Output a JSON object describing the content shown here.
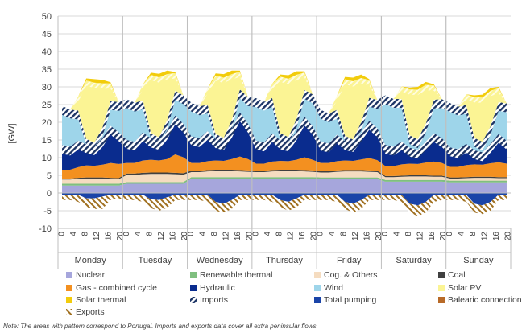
{
  "chart_data": {
    "type": "area",
    "ylabel": "[GW]",
    "ylim": [
      -10,
      50
    ],
    "yticks": [
      -10,
      -5,
      0,
      5,
      10,
      15,
      20,
      25,
      30,
      35,
      40,
      45,
      50
    ],
    "hour_ticks": [
      "0",
      "4",
      "8",
      "12",
      "16",
      "20"
    ],
    "days": [
      "Monday",
      "Tuesday",
      "Wednesday",
      "Thursday",
      "Friday",
      "Saturday",
      "Sunday"
    ],
    "legend": [
      {
        "key": "nuclear",
        "label": "Nuclear"
      },
      {
        "key": "renewable_thermal",
        "label": "Renewable thermal"
      },
      {
        "key": "cog_others",
        "label": "Cog. & Others"
      },
      {
        "key": "coal",
        "label": "Coal"
      },
      {
        "key": "gas_cc",
        "label": "Gas - combined cycle"
      },
      {
        "key": "hydraulic",
        "label": "Hydraulic"
      },
      {
        "key": "wind",
        "label": "Wind"
      },
      {
        "key": "solar_pv",
        "label": "Solar PV"
      },
      {
        "key": "solar_thermal",
        "label": "Solar thermal"
      },
      {
        "key": "imports",
        "label": "Imports"
      },
      {
        "key": "total_pumping",
        "label": "Total pumping"
      },
      {
        "key": "balearic",
        "label": "Balearic connection"
      },
      {
        "key": "exports",
        "label": "Exports"
      }
    ],
    "stack_order": [
      "nuclear",
      "renewable_thermal",
      "cog_others",
      "coal",
      "gas_cc",
      "hydraulic",
      "wind",
      "solar_pv",
      "solar_thermal"
    ],
    "colors": {
      "nuclear": "#a6a6dc",
      "renewable_thermal": "#7fbf7f",
      "cog_others": "#f5dcc0",
      "coal": "#404040",
      "gas_cc": "#f39020",
      "hydraulic": "#0a2c8e",
      "wind": "#9ed5ea",
      "solar_pv": "#fbf494",
      "solar_thermal": "#f2cc0c",
      "imports": "#20386e",
      "total_pumping": "#1a44a8",
      "balearic": "#b86a28",
      "exports": "#a07020"
    },
    "series": [
      {
        "key": "nuclear",
        "values": [
          2.1,
          2.1,
          2.1,
          2.1,
          2.1,
          2.1,
          2.1,
          2.1,
          2.6,
          2.6,
          2.6,
          2.6,
          2.6,
          2.6,
          2.6,
          2.6,
          4.0,
          4.0,
          4.0,
          4.0,
          4.0,
          4.0,
          4.0,
          4.0,
          4.0,
          4.0,
          4.0,
          4.0,
          4.0,
          4.0,
          4.0,
          4.0,
          3.9,
          3.9,
          3.9,
          3.9,
          3.9,
          3.9,
          3.9,
          3.9,
          3.2,
          3.2,
          3.2,
          3.2,
          3.2,
          3.2,
          3.2,
          3.2,
          3.0,
          3.0,
          3.0,
          3.0,
          3.0,
          3.0,
          3.0,
          3.0
        ]
      },
      {
        "key": "renewable_thermal",
        "values": [
          0.5,
          0.5,
          0.5,
          0.5,
          0.5,
          0.5,
          0.5,
          0.5,
          0.5,
          0.5,
          0.5,
          0.5,
          0.5,
          0.5,
          0.5,
          0.5,
          0.5,
          0.5,
          0.5,
          0.5,
          0.5,
          0.5,
          0.5,
          0.5,
          0.5,
          0.5,
          0.5,
          0.5,
          0.5,
          0.5,
          0.5,
          0.5,
          0.5,
          0.5,
          0.5,
          0.5,
          0.5,
          0.5,
          0.5,
          0.5,
          0.5,
          0.5,
          0.5,
          0.5,
          0.5,
          0.5,
          0.5,
          0.5,
          0.5,
          0.5,
          0.5,
          0.5,
          0.5,
          0.5,
          0.5,
          0.5
        ]
      },
      {
        "key": "cog_others",
        "values": [
          1.2,
          1.2,
          1.4,
          1.5,
          1.5,
          1.5,
          1.4,
          1.3,
          2.0,
          2.0,
          2.2,
          2.3,
          2.3,
          2.3,
          2.2,
          2.1,
          1.4,
          1.4,
          1.6,
          1.7,
          1.7,
          1.7,
          1.6,
          1.5,
          1.4,
          1.4,
          1.6,
          1.7,
          1.7,
          1.7,
          1.6,
          1.5,
          1.4,
          1.4,
          1.6,
          1.7,
          1.7,
          1.7,
          1.6,
          1.5,
          0.8,
          0.8,
          0.9,
          1.0,
          1.0,
          1.0,
          0.9,
          0.9,
          0.6,
          0.6,
          0.7,
          0.8,
          0.8,
          0.8,
          0.7,
          0.7
        ]
      },
      {
        "key": "coal",
        "values": [
          0.3,
          0.3,
          0.3,
          0.3,
          0.3,
          0.3,
          0.3,
          0.3,
          0.4,
          0.4,
          0.4,
          0.4,
          0.4,
          0.4,
          0.4,
          0.4,
          0.4,
          0.4,
          0.4,
          0.4,
          0.4,
          0.4,
          0.4,
          0.4,
          0.4,
          0.4,
          0.4,
          0.4,
          0.4,
          0.4,
          0.4,
          0.4,
          0.4,
          0.4,
          0.4,
          0.4,
          0.4,
          0.4,
          0.4,
          0.4,
          0.3,
          0.3,
          0.3,
          0.3,
          0.3,
          0.3,
          0.3,
          0.3,
          0.3,
          0.3,
          0.3,
          0.3,
          0.3,
          0.3,
          0.3,
          0.3
        ]
      },
      {
        "key": "gas_cc",
        "values": [
          2.5,
          2.5,
          3.0,
          3.4,
          3.3,
          3.6,
          4.2,
          4.0,
          3.0,
          3.0,
          3.5,
          3.6,
          3.4,
          3.8,
          5.2,
          4.5,
          2.2,
          2.2,
          2.5,
          2.6,
          2.5,
          3.0,
          3.8,
          3.2,
          2.0,
          2.0,
          2.4,
          2.5,
          2.4,
          2.8,
          3.6,
          3.0,
          2.3,
          2.3,
          2.6,
          2.7,
          2.6,
          3.0,
          3.5,
          3.0,
          2.8,
          2.8,
          3.2,
          3.3,
          3.2,
          3.6,
          4.0,
          3.6,
          3.0,
          3.0,
          3.4,
          3.5,
          3.4,
          3.8,
          4.2,
          3.8
        ]
      },
      {
        "key": "hydraulic",
        "values": [
          7.0,
          6.5,
          7.5,
          6.0,
          5.5,
          7.5,
          10.5,
          9.0,
          6.5,
          6.0,
          8.0,
          6.0,
          5.5,
          8.0,
          11.0,
          9.5,
          7.5,
          7.0,
          8.5,
          6.0,
          5.5,
          8.5,
          12.5,
          10.0,
          6.5,
          6.0,
          8.0,
          5.8,
          5.3,
          8.0,
          11.5,
          9.5,
          6.0,
          5.5,
          7.5,
          5.5,
          5.0,
          7.5,
          10.5,
          9.0,
          6.0,
          5.5,
          6.5,
          4.5,
          4.0,
          6.0,
          8.0,
          7.0,
          5.5,
          5.0,
          6.0,
          4.0,
          3.5,
          5.5,
          8.0,
          6.5
        ]
      },
      {
        "key": "wind",
        "values": [
          11.0,
          10.5,
          8.5,
          1.5,
          1.0,
          3.0,
          7.0,
          8.5,
          11.5,
          11.0,
          9.0,
          1.5,
          1.0,
          3.0,
          7.0,
          8.0,
          9.5,
          9.0,
          7.5,
          1.5,
          1.0,
          2.5,
          6.5,
          7.5,
          12.0,
          11.5,
          10.0,
          2.0,
          1.5,
          3.5,
          7.5,
          9.0,
          9.0,
          8.5,
          7.0,
          1.5,
          1.0,
          3.0,
          6.5,
          8.0,
          14.0,
          13.5,
          12.0,
          3.5,
          3.0,
          5.0,
          9.5,
          11.0,
          12.5,
          12.0,
          11.0,
          3.5,
          3.0,
          5.0,
          9.0,
          10.5
        ]
      },
      {
        "key": "solar_pv",
        "values": [
          0,
          0,
          4.0,
          16.5,
          17.0,
          12.5,
          5.0,
          0,
          0,
          0,
          4.5,
          16.5,
          17.0,
          13.0,
          5.0,
          0,
          0,
          0,
          4.5,
          16.5,
          17.0,
          13.0,
          5.0,
          0,
          0,
          0,
          4.0,
          16.0,
          16.5,
          12.5,
          5.0,
          0,
          0,
          0,
          4.0,
          16.0,
          16.5,
          12.5,
          5.0,
          0,
          0,
          0,
          3.5,
          13.0,
          14.0,
          11.0,
          4.0,
          0,
          0,
          0,
          3.0,
          11.5,
          12.5,
          10.0,
          4.0,
          0
        ]
      },
      {
        "key": "solar_thermal",
        "values": [
          0,
          0,
          0,
          0.6,
          1.0,
          1.0,
          0.3,
          0,
          0,
          0,
          0,
          0.6,
          1.0,
          1.0,
          0.3,
          0,
          0,
          0,
          0,
          0.6,
          1.0,
          1.0,
          0.3,
          0,
          0,
          0,
          0,
          0.6,
          1.0,
          1.0,
          0.3,
          0,
          0,
          0,
          0,
          0.6,
          1.0,
          1.0,
          0.3,
          0,
          0,
          0,
          0,
          0.5,
          0.8,
          0.8,
          0.3,
          0,
          0,
          0,
          0,
          0.5,
          0.8,
          0.8,
          0.3,
          0
        ]
      },
      {
        "key": "total_pumping",
        "values": [
          -0.5,
          -0.5,
          -0.5,
          -1.5,
          -1.5,
          -1.0,
          -0.5,
          -0.5,
          -0.5,
          -0.5,
          -0.5,
          -1.8,
          -2.0,
          -1.2,
          -0.5,
          -0.5,
          -0.5,
          -0.5,
          -0.5,
          -2.5,
          -3.0,
          -2.0,
          -0.5,
          -0.5,
          -0.5,
          -0.5,
          -0.5,
          -2.0,
          -2.5,
          -1.5,
          -0.5,
          -0.5,
          -0.5,
          -0.5,
          -0.5,
          -2.5,
          -3.0,
          -2.0,
          -0.5,
          -0.5,
          -0.5,
          -0.5,
          -0.5,
          -3.0,
          -3.5,
          -2.5,
          -0.5,
          -0.5,
          -0.5,
          -0.5,
          -0.5,
          -3.0,
          -3.5,
          -2.5,
          -0.5,
          -0.5
        ]
      },
      {
        "key": "exports",
        "values": [
          -1.5,
          -1.5,
          -2.0,
          -2.5,
          -3.0,
          -3.5,
          -1.5,
          -1.0,
          -1.5,
          -1.5,
          -2.0,
          -2.5,
          -3.0,
          -3.0,
          -1.5,
          -1.5,
          -1.5,
          -1.5,
          -2.0,
          -2.5,
          -2.5,
          -2.5,
          -1.5,
          -1.5,
          -1.5,
          -1.5,
          -2.0,
          -2.0,
          -2.5,
          -2.5,
          -1.5,
          -1.5,
          -1.5,
          -1.5,
          -2.0,
          -2.0,
          -2.5,
          -2.5,
          -1.5,
          -1.5,
          -1.5,
          -1.5,
          -2.0,
          -2.5,
          -3.0,
          -3.0,
          -2.0,
          -1.5,
          -1.5,
          -1.5,
          -2.0,
          -2.5,
          -2.5,
          -2.5,
          -1.5,
          -1.5
        ]
      }
    ],
    "note": "Note: The areas with pattern correspond to Portugal. Imports and exports data cover all extra peninsular flows."
  }
}
